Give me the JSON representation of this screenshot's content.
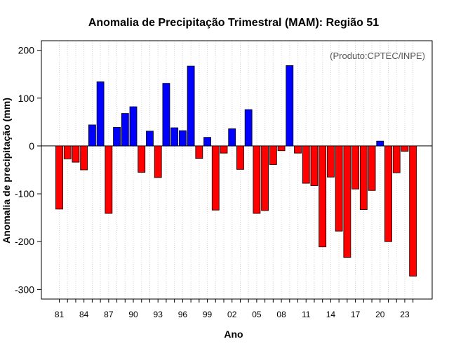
{
  "chart_data": {
    "type": "bar",
    "title": "Anomalia de Precipitação Trimestral (MAM): Região 51",
    "xlabel": "Ano",
    "ylabel": "Anomalia de precipitação (mm)",
    "annotation": "(Produto:CPTEC/INPE)",
    "ylim": [
      -320,
      220
    ],
    "yticks": [
      200,
      100,
      0,
      -100,
      -200,
      -300
    ],
    "ytick_labels": [
      "200",
      "100",
      "0",
      "-100",
      "-200",
      "-300"
    ],
    "xtick_labels": [
      "81",
      "84",
      "87",
      "90",
      "93",
      "96",
      "99",
      "02",
      "05",
      "08",
      "11",
      "14",
      "17",
      "20",
      "23"
    ],
    "years": [
      1981,
      1982,
      1983,
      1984,
      1985,
      1986,
      1987,
      1988,
      1989,
      1990,
      1991,
      1992,
      1993,
      1994,
      1995,
      1996,
      1997,
      1998,
      1999,
      2000,
      2001,
      2002,
      2003,
      2004,
      2005,
      2006,
      2007,
      2008,
      2009,
      2010,
      2011,
      2012,
      2013,
      2014,
      2015,
      2016,
      2017,
      2018,
      2019,
      2020,
      2021,
      2022,
      2023,
      2024
    ],
    "values": [
      -132,
      -27,
      -34,
      -50,
      44,
      134,
      -141,
      39,
      68,
      82,
      -55,
      31,
      -66,
      131,
      38,
      32,
      167,
      -26,
      18,
      -134,
      -15,
      36,
      -49,
      76,
      -141,
      -135,
      -39,
      -10,
      168,
      -15,
      -78,
      -83,
      -211,
      -65,
      -178,
      -233,
      -90,
      -133,
      -93,
      10,
      -200,
      -56,
      -11,
      -272
    ],
    "colors": {
      "positive": "#0000ff",
      "negative": "#ff0000",
      "bar_outline": "#000000",
      "grid": "#d3d3d3",
      "zero_line": "#000000",
      "frame": "#000000",
      "annotation": "#555555"
    },
    "grid": true
  }
}
